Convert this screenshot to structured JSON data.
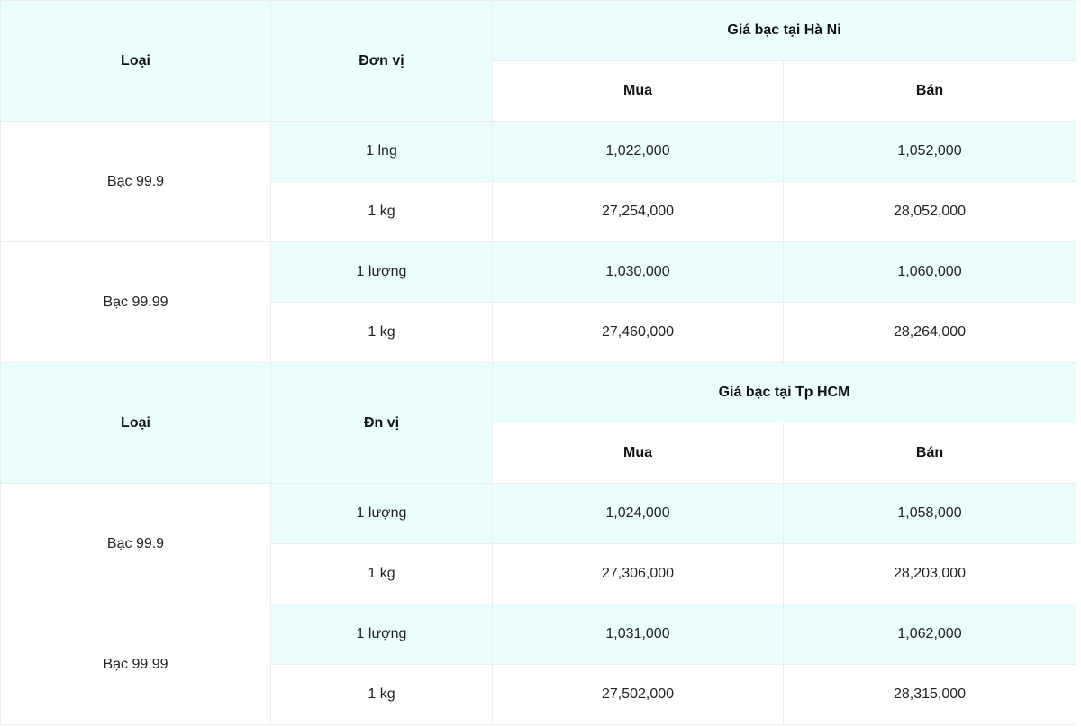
{
  "tables": [
    {
      "headers": {
        "type": "Loại",
        "unit": "Đơn vị",
        "group": "Giá bạc tại Hà Ni",
        "buy": "Mua",
        "sell": "Bán"
      },
      "rows": [
        {
          "type": "Bạc 99.9",
          "items": [
            {
              "unit": "1 lng",
              "buy": "1,022,000",
              "sell": "1,052,000"
            },
            {
              "unit": "1 kg",
              "buy": "27,254,000",
              "sell": "28,052,000"
            }
          ]
        },
        {
          "type": "Bạc 99.99",
          "items": [
            {
              "unit": "1 lượng",
              "buy": "1,030,000",
              "sell": "1,060,000"
            },
            {
              "unit": "1 kg",
              "buy": "27,460,000",
              "sell": "28,264,000"
            }
          ]
        }
      ]
    },
    {
      "headers": {
        "type": "Loại",
        "unit": "Đn vị",
        "group": "Giá bạc tại Tp HCM",
        "buy": "Mua",
        "sell": "Bán"
      },
      "rows": [
        {
          "type": "Bạc 99.9",
          "items": [
            {
              "unit": "1 lượng",
              "buy": "1,024,000",
              "sell": "1,058,000"
            },
            {
              "unit": "1 kg",
              "buy": "27,306,000",
              "sell": "28,203,000"
            }
          ]
        },
        {
          "type": "Bạc 99.99",
          "items": [
            {
              "unit": "1 lượng",
              "buy": "1,031,000",
              "sell": "1,062,000"
            },
            {
              "unit": "1 kg",
              "buy": "27,502,000",
              "sell": "28,315,000"
            }
          ]
        }
      ]
    }
  ],
  "colors": {
    "highlight": "#ebfefe",
    "border": "#eceeee"
  }
}
